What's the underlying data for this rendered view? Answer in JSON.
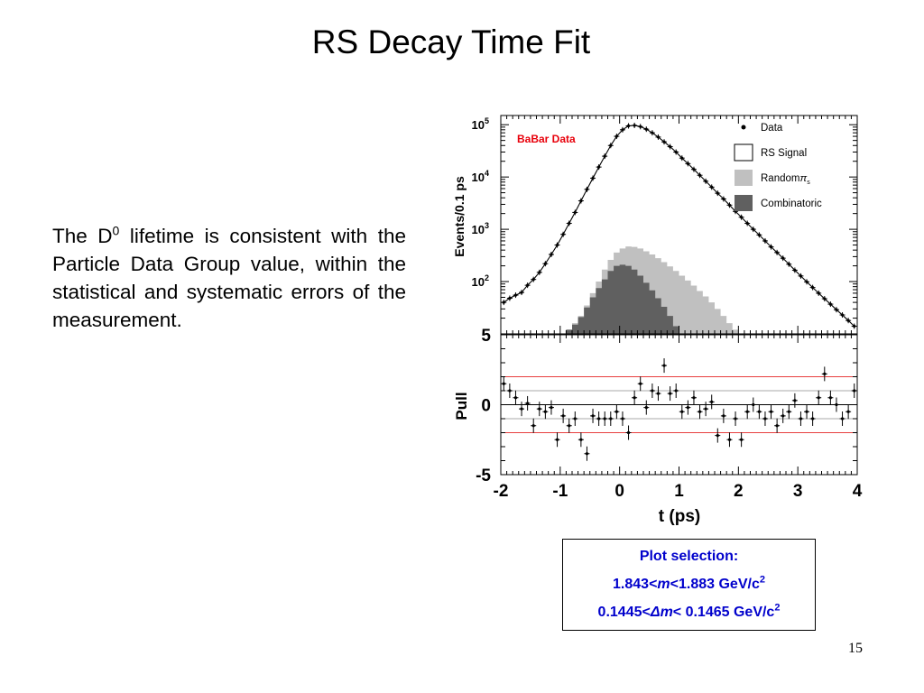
{
  "slide": {
    "title": "RS Decay Time Fit",
    "page_number": "15"
  },
  "body": {
    "pre": "The D",
    "sup": "0",
    "post": " lifetime is consistent with the Particle Data Group value, within the statistical and systematic errors of the measurement."
  },
  "selection_box": {
    "heading": "Plot selection:",
    "line1_pre": "1.843<",
    "line1_var": "m",
    "line1_post": "<1.883 GeV/c",
    "line1_sup": "2",
    "line2_pre": "0.1445<",
    "line2_var": "Δm",
    "line2_post": "< 0.1465 GeV/c",
    "line2_sup": "2"
  },
  "chart_data": [
    {
      "type": "histogram",
      "panel": "top",
      "annotation": "BaBar Data",
      "annotation_color": "#e8000b",
      "xlim": [
        -2,
        4
      ],
      "ylog": true,
      "ylim": [
        10,
        150000
      ],
      "ylabel": "Events/0.1 ps",
      "yticks": [
        {
          "value": 100000,
          "base": "10",
          "exp": "5"
        },
        {
          "value": 10000,
          "base": "10",
          "exp": "4"
        },
        {
          "value": 1000,
          "base": "10",
          "exp": "3"
        },
        {
          "value": 100,
          "base": "10",
          "exp": "2"
        }
      ],
      "legend": [
        {
          "label": "Data",
          "symbol": "dot",
          "color": "#000000"
        },
        {
          "label": "RS Signal",
          "symbol": "box",
          "color": "#ffffff"
        },
        {
          "label": "Random",
          "suffix": "π",
          "sub": "s",
          "symbol": "box",
          "color": "#c0c0c0"
        },
        {
          "label": "Combinatoric",
          "symbol": "box",
          "color": "#606060"
        }
      ],
      "legend_position": "top-right",
      "series": [
        {
          "name": "Data",
          "x": [
            -1.95,
            -1.85,
            -1.75,
            -1.65,
            -1.55,
            -1.45,
            -1.35,
            -1.25,
            -1.15,
            -1.05,
            -0.95,
            -0.85,
            -0.75,
            -0.65,
            -0.55,
            -0.45,
            -0.35,
            -0.25,
            -0.15,
            -0.05,
            0.05,
            0.15,
            0.25,
            0.35,
            0.45,
            0.55,
            0.65,
            0.75,
            0.85,
            0.95,
            1.05,
            1.15,
            1.25,
            1.35,
            1.45,
            1.55,
            1.65,
            1.75,
            1.85,
            1.95,
            2.05,
            2.15,
            2.25,
            2.35,
            2.45,
            2.55,
            2.65,
            2.75,
            2.85,
            2.95,
            3.05,
            3.15,
            3.25,
            3.35,
            3.45,
            3.55,
            3.65,
            3.75,
            3.85,
            3.95
          ],
          "y": [
            40,
            48,
            55,
            62,
            85,
            110,
            150,
            220,
            330,
            500,
            800,
            1300,
            2100,
            3500,
            5800,
            9500,
            15500,
            25000,
            40000,
            60000,
            80000,
            95000,
            97000,
            92000,
            82000,
            70000,
            58000,
            47000,
            38000,
            30000,
            23000,
            18000,
            14000,
            10800,
            8300,
            6400,
            4900,
            3800,
            2900,
            2200,
            1700,
            1300,
            1000,
            780,
            600,
            460,
            360,
            280,
            215,
            165,
            128,
            99,
            77,
            60,
            47,
            37,
            29,
            23,
            18,
            14
          ]
        },
        {
          "name": "Random",
          "x": [
            -1.95,
            -1.85,
            -1.75,
            -1.65,
            -1.55,
            -1.45,
            -1.35,
            -1.25,
            -1.15,
            -1.05,
            -0.95,
            -0.85,
            -0.75,
            -0.65,
            -0.55,
            -0.45,
            -0.35,
            -0.25,
            -0.15,
            -0.05,
            0.05,
            0.15,
            0.25,
            0.35,
            0.45,
            0.55,
            0.65,
            0.75,
            0.85,
            0.95,
            1.05,
            1.15,
            1.25,
            1.35,
            1.45,
            1.55,
            1.65,
            1.75,
            1.85,
            1.95,
            2.05,
            2.15,
            2.25,
            2.35,
            2.45,
            2.55,
            2.65,
            2.75,
            2.85,
            2.95,
            3.05,
            3.15,
            3.25,
            3.35,
            3.45,
            3.55,
            3.65,
            3.75,
            3.85,
            3.95
          ],
          "y": [
            0,
            0,
            0,
            0,
            0,
            0,
            0,
            0,
            0,
            0,
            0,
            12,
            16,
            22,
            35,
            60,
            100,
            170,
            260,
            360,
            430,
            470,
            460,
            430,
            380,
            330,
            280,
            235,
            195,
            160,
            130,
            105,
            84,
            66,
            52,
            40,
            30,
            22,
            16,
            12,
            0,
            0,
            0,
            0,
            0,
            0,
            0,
            0,
            0,
            0,
            0,
            0,
            0,
            0,
            0,
            0,
            0,
            0,
            0,
            0
          ]
        },
        {
          "name": "Combinatoric",
          "x": [
            -1.95,
            -1.85,
            -1.75,
            -1.65,
            -1.55,
            -1.45,
            -1.35,
            -1.25,
            -1.15,
            -1.05,
            -0.95,
            -0.85,
            -0.75,
            -0.65,
            -0.55,
            -0.45,
            -0.35,
            -0.25,
            -0.15,
            -0.05,
            0.05,
            0.15,
            0.25,
            0.35,
            0.45,
            0.55,
            0.65,
            0.75,
            0.85,
            0.95,
            1.05,
            1.15,
            1.25,
            1.35,
            1.45,
            1.55,
            1.65,
            1.75,
            1.85,
            1.95,
            2.05,
            2.15,
            2.25,
            2.35,
            2.45,
            2.55,
            2.65,
            2.75,
            2.85,
            2.95,
            3.05,
            3.15,
            3.25,
            3.35,
            3.45,
            3.55,
            3.65,
            3.75,
            3.85,
            3.95
          ],
          "y": [
            0,
            0,
            0,
            0,
            0,
            0,
            0,
            0,
            0,
            0,
            0,
            12,
            15,
            21,
            32,
            50,
            75,
            110,
            160,
            200,
            210,
            200,
            170,
            130,
            95,
            68,
            48,
            33,
            22,
            14,
            0,
            0,
            0,
            0,
            0,
            0,
            0,
            0,
            0,
            0,
            0,
            0,
            0,
            0,
            0,
            0,
            0,
            0,
            0,
            0,
            0,
            0,
            0,
            0,
            0,
            0,
            0,
            0,
            0,
            0
          ]
        }
      ]
    },
    {
      "type": "scatter",
      "panel": "bottom",
      "xlabel": "t (ps)",
      "ylabel": "Pull",
      "xlim": [
        -2,
        4
      ],
      "ylim": [
        -5,
        5
      ],
      "xticks": [
        "-2",
        "-1",
        "0",
        "1",
        "2",
        "3",
        "4"
      ],
      "yticks": [
        "5",
        "0",
        "-5"
      ],
      "reference_lines_red": [
        2,
        -2
      ],
      "reference_lines_gray": [
        1,
        -1
      ],
      "series": [
        {
          "name": "Pull",
          "x": [
            -1.95,
            -1.85,
            -1.75,
            -1.65,
            -1.55,
            -1.45,
            -1.35,
            -1.25,
            -1.15,
            -1.05,
            -0.95,
            -0.85,
            -0.75,
            -0.65,
            -0.55,
            -0.45,
            -0.35,
            -0.25,
            -0.15,
            -0.05,
            0.05,
            0.15,
            0.25,
            0.35,
            0.45,
            0.55,
            0.65,
            0.75,
            0.85,
            0.95,
            1.05,
            1.15,
            1.25,
            1.35,
            1.45,
            1.55,
            1.65,
            1.75,
            1.85,
            1.95,
            2.05,
            2.15,
            2.25,
            2.35,
            2.45,
            2.55,
            2.65,
            2.75,
            2.85,
            2.95,
            3.05,
            3.15,
            3.25,
            3.35,
            3.45,
            3.55,
            3.65,
            3.75,
            3.85,
            3.95
          ],
          "y": [
            1.5,
            1.0,
            0.5,
            -0.3,
            0.1,
            -1.5,
            -0.3,
            -0.5,
            -0.2,
            -2.5,
            -0.8,
            -1.5,
            -1.0,
            -2.5,
            -3.5,
            -0.8,
            -1.0,
            -1.0,
            -1.0,
            -0.5,
            -1.0,
            -2.0,
            0.5,
            1.5,
            -0.2,
            1.0,
            0.8,
            2.8,
            0.8,
            1.0,
            -0.5,
            -0.2,
            0.5,
            -0.5,
            -0.3,
            0.2,
            -2.2,
            -0.8,
            -2.5,
            -1.0,
            -2.5,
            -0.5,
            0.0,
            -0.5,
            -1.0,
            -0.5,
            -1.5,
            -0.8,
            -0.5,
            0.3,
            -1.0,
            -0.5,
            -1.0,
            0.5,
            2.2,
            0.5,
            0.0,
            -1.0,
            -0.5,
            1.0
          ]
        }
      ]
    }
  ]
}
